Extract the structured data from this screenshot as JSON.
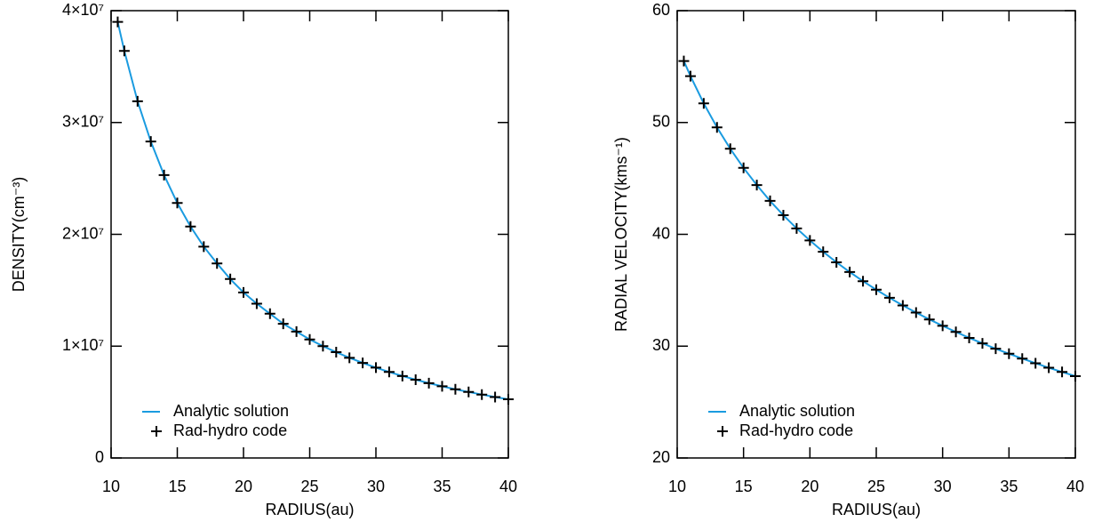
{
  "chart_data": [
    {
      "type": "line",
      "xlabel": "RADIUS(au)",
      "ylabel": "DENSITY(cm⁻³)",
      "x": [
        10.5,
        11,
        12,
        13,
        14,
        15,
        16,
        17,
        18,
        19,
        20,
        21,
        22,
        23,
        24,
        25,
        26,
        27,
        28,
        29,
        30,
        31,
        32,
        33,
        34,
        35,
        36,
        37,
        38,
        39,
        40
      ],
      "series": [
        {
          "name": "Analytic solution",
          "color": "#1a9be0",
          "values": [
            39000000,
            36400000,
            31900000,
            28300000,
            25300000,
            22800000,
            20700000,
            18900000,
            17400000,
            16000000,
            14800000,
            13800000,
            12900000,
            12000000,
            11300000,
            10600000,
            10000000,
            9460000,
            8960000,
            8500000,
            8080000,
            7690000,
            7330000,
            7000000,
            6690000,
            6410000,
            6140000,
            5900000,
            5670000,
            5450000,
            5250000
          ]
        },
        {
          "name": "Rad-hydro code",
          "color": "#000000",
          "marker": "+",
          "values": [
            39000000,
            36400000,
            31900000,
            28300000,
            25300000,
            22800000,
            20700000,
            18900000,
            17400000,
            16000000,
            14800000,
            13800000,
            12900000,
            12000000,
            11300000,
            10600000,
            10000000,
            9460000,
            8960000,
            8500000,
            8080000,
            7690000,
            7330000,
            7000000,
            6690000,
            6410000,
            6140000,
            5900000,
            5670000,
            5450000,
            5250000
          ]
        }
      ],
      "xlim": [
        10,
        40
      ],
      "xticks": [
        10,
        15,
        20,
        25,
        30,
        35,
        40
      ],
      "ylim": [
        0,
        40000000
      ],
      "yticks": [
        0,
        {
          "value": 10000000,
          "label": "1×10⁷"
        },
        {
          "value": 20000000,
          "label": "2×10⁷"
        },
        {
          "value": 30000000,
          "label": "3×10⁷"
        },
        {
          "value": 40000000,
          "label": "4×10⁷"
        }
      ],
      "legend": "lower left"
    },
    {
      "type": "line",
      "xlabel": "RADIUS(au)",
      "ylabel": "RADIAL VELOCITY(kms⁻¹)",
      "x": [
        10.5,
        11,
        12,
        13,
        14,
        15,
        16,
        17,
        18,
        19,
        20,
        21,
        22,
        23,
        24,
        25,
        26,
        27,
        28,
        29,
        30,
        31,
        32,
        33,
        34,
        35,
        36,
        37,
        38,
        39,
        40
      ],
      "series": [
        {
          "name": "Analytic solution",
          "color": "#1a9be0",
          "values": [
            55.5,
            54.15,
            51.71,
            49.56,
            47.65,
            45.94,
            44.4,
            42.99,
            41.71,
            40.53,
            39.45,
            38.44,
            37.5,
            36.63,
            35.81,
            35.05,
            34.32,
            33.64,
            33.0,
            32.39,
            31.82,
            31.27,
            30.74,
            30.25,
            29.77,
            29.32,
            28.89,
            28.47,
            28.07,
            27.69,
            27.32
          ]
        },
        {
          "name": "Rad-hydro code",
          "color": "#000000",
          "marker": "+",
          "values": [
            55.5,
            54.15,
            51.71,
            49.56,
            47.65,
            45.94,
            44.4,
            42.99,
            41.71,
            40.53,
            39.45,
            38.44,
            37.5,
            36.63,
            35.81,
            35.05,
            34.32,
            33.64,
            33.0,
            32.39,
            31.82,
            31.27,
            30.74,
            30.25,
            29.77,
            29.32,
            28.89,
            28.47,
            28.07,
            27.69,
            27.32
          ]
        }
      ],
      "xlim": [
        10,
        40
      ],
      "xticks": [
        10,
        15,
        20,
        25,
        30,
        35,
        40
      ],
      "ylim": [
        20,
        60
      ],
      "yticks": [
        20,
        30,
        40,
        50,
        60
      ],
      "legend": "lower left"
    }
  ]
}
